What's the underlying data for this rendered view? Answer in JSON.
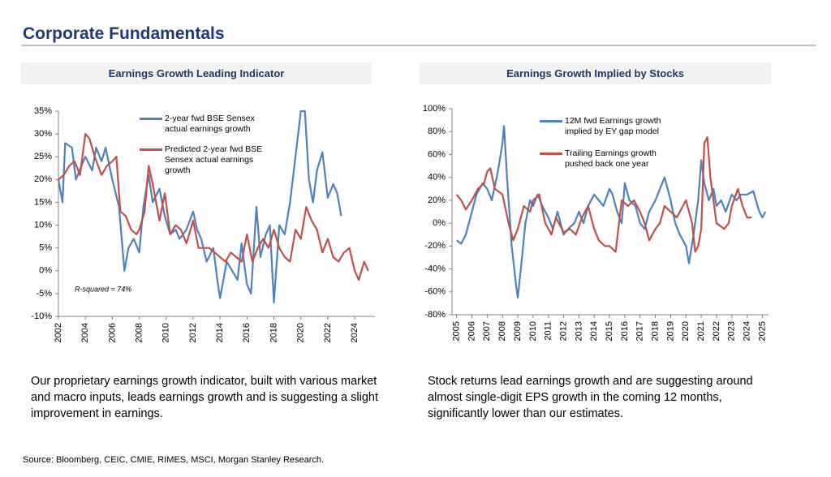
{
  "title": "Corporate Fundamentals",
  "chart_data": [
    {
      "type": "line",
      "title": "Earnings Growth Leading Indicator",
      "annotation": "R-squared = 74%",
      "xlim": [
        2002,
        2025.5
      ],
      "xticks": [
        2002,
        2004,
        2006,
        2008,
        2010,
        2012,
        2014,
        2016,
        2018,
        2020,
        2022,
        2024
      ],
      "ylim": [
        -10,
        35
      ],
      "yticks": [
        {
          "value": -10,
          "label": "-10%"
        },
        {
          "value": -5,
          "label": "-5%"
        },
        {
          "value": 0,
          "label": "0%"
        },
        {
          "value": 5,
          "label": "5%"
        },
        {
          "value": 10,
          "label": "10%"
        },
        {
          "value": 15,
          "label": "15%"
        },
        {
          "value": 20,
          "label": "20%"
        },
        {
          "value": 25,
          "label": "25%"
        },
        {
          "value": 30,
          "label": "30%"
        },
        {
          "value": 35,
          "label": "35%"
        }
      ],
      "series": [
        {
          "name": "2-year fwd BSE Sensex actual earnings growth",
          "color": "#4f81bd",
          "x": [
            2002,
            2002.3,
            2002.5,
            2003,
            2003.3,
            2003.7,
            2004,
            2004.5,
            2004.8,
            2005.2,
            2005.5,
            2006,
            2006.5,
            2006.9,
            2007.2,
            2007.6,
            2008,
            2008.3,
            2008.7,
            2009,
            2009.5,
            2009.9,
            2010.3,
            2010.7,
            2011,
            2011.5,
            2012,
            2012.3,
            2012.6,
            2013,
            2013.5,
            2013.8,
            2014,
            2014.5,
            2014.9,
            2015.3,
            2015.6,
            2016,
            2016.3,
            2016.7,
            2017,
            2017.4,
            2017.7,
            2018,
            2018.4,
            2018.8,
            2019.2,
            2019.6,
            2020,
            2020.3,
            2020.6,
            2020.9,
            2021.2,
            2021.6,
            2022,
            2022.4,
            2022.7,
            2023
          ],
          "values": [
            20,
            15,
            28,
            27,
            20,
            23,
            25,
            22,
            27,
            24,
            27,
            20,
            14,
            0,
            5,
            7,
            4,
            14,
            21,
            15,
            18,
            12,
            8,
            9,
            7,
            9,
            13,
            9,
            7,
            2,
            5,
            -2,
            -6,
            2,
            0,
            -2,
            6,
            -3,
            -5,
            14,
            3,
            8,
            10,
            -7,
            10,
            8,
            15,
            25,
            35,
            35,
            20,
            15,
            22,
            26,
            16,
            19,
            17,
            12
          ]
        },
        {
          "name": "Predicted 2-year fwd BSE Sensex actual earnings growth",
          "color": "#c0504d",
          "x": [
            2002,
            2002.4,
            2002.8,
            2003.2,
            2003.6,
            2004,
            2004.3,
            2004.7,
            2005.2,
            2005.6,
            2006,
            2006.3,
            2006.6,
            2007,
            2007.4,
            2007.8,
            2008,
            2008.4,
            2008.7,
            2009,
            2009.5,
            2009.9,
            2010.3,
            2010.7,
            2011.1,
            2011.5,
            2012,
            2012.4,
            2012.8,
            2013.2,
            2013.6,
            2014,
            2014.4,
            2014.8,
            2015.2,
            2015.6,
            2016,
            2016.4,
            2016.8,
            2017.2,
            2017.6,
            2018,
            2018.4,
            2018.8,
            2019.2,
            2019.6,
            2020,
            2020.4,
            2020.8,
            2021.2,
            2021.6,
            2022,
            2022.4,
            2022.8,
            2023.2,
            2023.6,
            2024,
            2024.3,
            2024.7,
            2025
          ],
          "values": [
            20,
            21,
            23,
            24,
            21,
            30,
            29,
            25,
            21,
            23,
            24,
            25,
            13,
            12,
            9,
            8,
            9,
            13,
            23,
            19,
            11,
            17,
            8,
            10,
            9,
            6,
            11,
            5,
            5,
            5,
            4,
            3,
            2,
            4,
            3,
            2,
            8,
            2,
            5,
            7,
            5,
            9,
            5,
            3,
            2,
            9,
            7,
            14,
            11,
            9,
            4,
            7,
            3,
            2,
            4,
            5,
            0,
            -2,
            2,
            0
          ]
        }
      ]
    },
    {
      "type": "line",
      "title": "Earnings Growth Implied by Stocks",
      "xlim": [
        2004.7,
        2025.4
      ],
      "xticks": [
        2005,
        2006,
        2007,
        2008,
        2009,
        2010,
        2011,
        2012,
        2013,
        2014,
        2015,
        2016,
        2017,
        2018,
        2019,
        2020,
        2021,
        2022,
        2023,
        2024,
        2025
      ],
      "ylim": [
        -80,
        100
      ],
      "yticks": [
        {
          "value": -80,
          "label": "-80%"
        },
        {
          "value": -60,
          "label": "-60%"
        },
        {
          "value": -40,
          "label": "-40%"
        },
        {
          "value": -20,
          "label": "-20%"
        },
        {
          "value": 0,
          "label": "0%"
        },
        {
          "value": 20,
          "label": "20%"
        },
        {
          "value": 40,
          "label": "40%"
        },
        {
          "value": 60,
          "label": "60%"
        },
        {
          "value": 80,
          "label": "80%"
        },
        {
          "value": 100,
          "label": "100%"
        }
      ],
      "series": [
        {
          "name": "12M fwd Earnings growth implied by EY gap model",
          "color": "#4f81bd",
          "x": [
            2005,
            2005.3,
            2005.6,
            2006,
            2006.3,
            2006.7,
            2007,
            2007.3,
            2007.7,
            2008,
            2008.1,
            2008.3,
            2008.6,
            2008.9,
            2009,
            2009.2,
            2009.5,
            2009.8,
            2010,
            2010.3,
            2010.6,
            2011,
            2011.3,
            2011.6,
            2012,
            2012.3,
            2012.7,
            2013,
            2013.3,
            2013.6,
            2014,
            2014.3,
            2014.6,
            2015,
            2015.2,
            2015.5,
            2015.8,
            2016,
            2016.3,
            2016.7,
            2017,
            2017.3,
            2017.6,
            2018,
            2018.3,
            2018.6,
            2019,
            2019.3,
            2019.6,
            2020,
            2020.2,
            2020.5,
            2020.8,
            2021,
            2021.2,
            2021.5,
            2021.8,
            2022,
            2022.3,
            2022.6,
            2023,
            2023.3,
            2023.6,
            2024,
            2024.4,
            2024.8,
            2025,
            2025.2
          ],
          "values": [
            -15,
            -18,
            -10,
            10,
            25,
            35,
            30,
            20,
            45,
            70,
            85,
            40,
            -20,
            -55,
            -65,
            -40,
            0,
            20,
            15,
            25,
            15,
            5,
            -5,
            10,
            -10,
            -5,
            0,
            10,
            0,
            15,
            25,
            20,
            15,
            30,
            25,
            10,
            0,
            35,
            20,
            15,
            0,
            -5,
            10,
            20,
            30,
            40,
            20,
            0,
            -10,
            -20,
            -35,
            -10,
            20,
            55,
            35,
            20,
            30,
            15,
            20,
            10,
            25,
            20,
            25,
            25,
            28,
            10,
            5,
            10
          ]
        },
        {
          "name": "Trailing Earnings growth pushed back one year",
          "color": "#c0504d",
          "x": [
            2005,
            2005.3,
            2005.6,
            2006,
            2006.4,
            2006.8,
            2007,
            2007.2,
            2007.5,
            2008,
            2008.4,
            2008.7,
            2009,
            2009.4,
            2009.8,
            2010,
            2010.4,
            2010.8,
            2011.2,
            2011.5,
            2012,
            2012.4,
            2012.8,
            2013.2,
            2013.6,
            2014,
            2014.3,
            2014.7,
            2015,
            2015.4,
            2015.8,
            2016.2,
            2016.6,
            2017,
            2017.3,
            2017.6,
            2018,
            2018.3,
            2018.6,
            2019,
            2019.4,
            2019.8,
            2020,
            2020.4,
            2020.6,
            2020.8,
            2021,
            2021.2,
            2021.4,
            2021.6,
            2022,
            2022.5,
            2022.8,
            2023,
            2023.4,
            2023.7,
            2024,
            2024.3
          ],
          "values": [
            25,
            20,
            12,
            20,
            30,
            35,
            45,
            48,
            30,
            25,
            0,
            -15,
            -5,
            15,
            10,
            20,
            25,
            0,
            -10,
            5,
            -8,
            -5,
            -10,
            5,
            15,
            -5,
            -15,
            -20,
            -20,
            -25,
            20,
            15,
            20,
            10,
            0,
            -15,
            -5,
            0,
            15,
            10,
            5,
            15,
            20,
            0,
            -25,
            -20,
            -5,
            70,
            75,
            40,
            0,
            -5,
            0,
            15,
            30,
            15,
            5,
            5
          ]
        }
      ]
    }
  ],
  "notes": [
    "Our proprietary earnings growth indicator, built with various market and macro inputs, leads earnings growth and is suggesting a slight improvement in earnings.",
    "Stock returns lead earnings growth and are suggesting around almost single-digit EPS growth in the coming 12 months, significantly lower than our estimates."
  ],
  "source": "Source: Bloomberg, CEIC, CMIE, RIMES, MSCI, Morgan Stanley Research."
}
